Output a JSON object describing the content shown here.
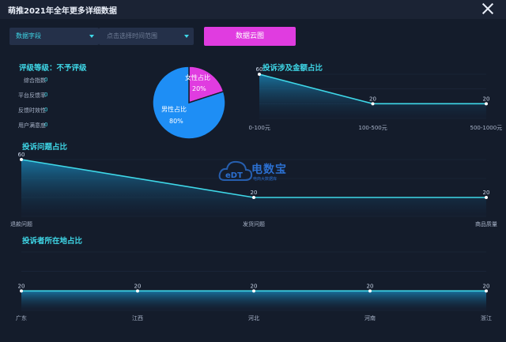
{
  "window": {
    "title": "萌推2021年全年更多详细数据"
  },
  "filters": {
    "data_field": "数据字段",
    "time_range_placeholder": "点击选择时间范围",
    "cloud_button": "数据云图"
  },
  "rating": {
    "title": "评级等级：不予评级",
    "items": [
      {
        "label": "综合指数",
        "value": "0"
      },
      {
        "label": "平台反馈率",
        "value": "0"
      },
      {
        "label": "反馈时效性",
        "value": "0"
      },
      {
        "label": "用户满意度",
        "value": "0"
      }
    ]
  },
  "gender_pie": {
    "slices": [
      {
        "label": "女性占比",
        "value": "20%",
        "percent": 20,
        "color": "#e03ce0"
      },
      {
        "label": "男性占比",
        "value": "80%",
        "percent": 80,
        "color": "#1e8ef5"
      }
    ]
  },
  "amount_chart": {
    "title": "投诉涉及金额占比",
    "categories": [
      "0-100元",
      "100-500元",
      "500-1000元"
    ],
    "values": [
      60,
      20,
      20
    ],
    "value_labels": [
      "60",
      "20",
      "20"
    ]
  },
  "issue_chart": {
    "title": "投诉问题占比",
    "categories": [
      "退款问题",
      "发货问题",
      "商品质量"
    ],
    "values": [
      60,
      20,
      20
    ],
    "value_labels": [
      "60",
      "20",
      "20"
    ]
  },
  "location_chart": {
    "title": "投诉者所在地占比",
    "categories": [
      "广东",
      "江西",
      "河北",
      "河南",
      "浙江"
    ],
    "values": [
      20,
      20,
      20,
      20,
      20
    ],
    "value_labels": [
      "20",
      "20",
      "20",
      "20",
      "20"
    ]
  },
  "watermark": {
    "brand": "电数宝",
    "sub": "电商大数据库"
  },
  "chart_data": [
    {
      "type": "pie",
      "categories": [
        "女性占比",
        "男性占比"
      ],
      "values": [
        20,
        80
      ]
    },
    {
      "type": "area",
      "title": "投诉涉及金额占比",
      "categories": [
        "0-100元",
        "100-500元",
        "500-1000元"
      ],
      "values": [
        60,
        20,
        20
      ]
    },
    {
      "type": "area",
      "title": "投诉问题占比",
      "categories": [
        "退款问题",
        "发货问题",
        "商品质量"
      ],
      "values": [
        60,
        20,
        20
      ]
    },
    {
      "type": "area",
      "title": "投诉者所在地占比",
      "categories": [
        "广东",
        "江西",
        "河北",
        "河南",
        "浙江"
      ],
      "values": [
        20,
        20,
        20,
        20,
        20
      ]
    }
  ],
  "colors": {
    "accent": "#3fd8e8",
    "pink": "#e03ce0",
    "blue": "#1e8ef5",
    "bg": "#141c2b"
  }
}
